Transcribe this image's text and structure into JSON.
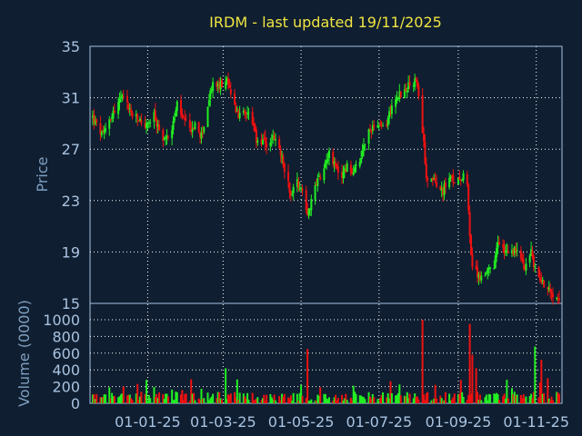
{
  "chart_data": [
    {
      "type": "candlestick",
      "title": "IRDM - last updated 19/11/2025",
      "ylabel": "Price",
      "ylim": [
        15,
        35
      ],
      "yticks": [
        "35",
        "31",
        "27",
        "23",
        "19"
      ],
      "xticks": [
        "01-01-25",
        "01-03-25",
        "01-05-25",
        "01-07-25",
        "01-09-25",
        "01-11-25"
      ],
      "grid": true,
      "colors": {
        "up": "#22ee22",
        "down": "#ee1111",
        "background": "#0f1e30",
        "grid": "#ffffff",
        "title": "#f0e442",
        "label": "#7f9fc0"
      },
      "x_start": "2024-11-19",
      "x_end": "2025-11-19",
      "close_path": [
        [
          "2024-11-19",
          29.5
        ],
        [
          "2024-11-22",
          28.8
        ],
        [
          "2024-11-27",
          28.0
        ],
        [
          "2024-12-02",
          29.4
        ],
        [
          "2024-12-06",
          30.0
        ],
        [
          "2024-12-11",
          31.0
        ],
        [
          "2024-12-16",
          30.5
        ],
        [
          "2024-12-20",
          29.6
        ],
        [
          "2024-12-26",
          29.2
        ],
        [
          "2024-12-31",
          28.8
        ],
        [
          "2025-01-06",
          29.6
        ],
        [
          "2025-01-10",
          28.4
        ],
        [
          "2025-01-15",
          27.7
        ],
        [
          "2025-01-21",
          29.0
        ],
        [
          "2025-01-24",
          30.5
        ],
        [
          "2025-01-29",
          29.2
        ],
        [
          "2025-02-03",
          28.5
        ],
        [
          "2025-02-07",
          28.8
        ],
        [
          "2025-02-12",
          28.0
        ],
        [
          "2025-02-18",
          30.8
        ],
        [
          "2025-02-21",
          32.2
        ],
        [
          "2025-02-26",
          31.8
        ],
        [
          "2025-03-03",
          32.5
        ],
        [
          "2025-03-06",
          31.6
        ],
        [
          "2025-03-11",
          30.2
        ],
        [
          "2025-03-14",
          29.5
        ],
        [
          "2025-03-19",
          30.0
        ],
        [
          "2025-03-24",
          29.0
        ],
        [
          "2025-03-27",
          27.6
        ],
        [
          "2025-04-01",
          27.5
        ],
        [
          "2025-04-04",
          27.4
        ],
        [
          "2025-04-09",
          27.8
        ],
        [
          "2025-04-14",
          27.0
        ],
        [
          "2025-04-18",
          25.5
        ],
        [
          "2025-04-23",
          23.5
        ],
        [
          "2025-04-28",
          24.5
        ],
        [
          "2025-05-02",
          23.8
        ],
        [
          "2025-05-06",
          22.0
        ],
        [
          "2025-05-09",
          23.0
        ],
        [
          "2025-05-14",
          24.5
        ],
        [
          "2025-05-19",
          25.8
        ],
        [
          "2025-05-23",
          26.8
        ],
        [
          "2025-05-28",
          25.5
        ],
        [
          "2025-06-02",
          25.0
        ],
        [
          "2025-06-06",
          25.6
        ],
        [
          "2025-06-11",
          25.2
        ],
        [
          "2025-06-16",
          25.8
        ],
        [
          "2025-06-19",
          27.2
        ],
        [
          "2025-06-24",
          28.5
        ],
        [
          "2025-06-27",
          29.0
        ],
        [
          "2025-07-02",
          28.6
        ],
        [
          "2025-07-07",
          29.0
        ],
        [
          "2025-07-11",
          30.5
        ],
        [
          "2025-07-16",
          31.2
        ],
        [
          "2025-07-21",
          31.5
        ],
        [
          "2025-07-25",
          32.0
        ],
        [
          "2025-07-30",
          32.3
        ],
        [
          "2025-08-04",
          28.5
        ],
        [
          "2025-08-07",
          25.0
        ],
        [
          "2025-08-12",
          24.6
        ],
        [
          "2025-08-15",
          24.0
        ],
        [
          "2025-08-20",
          23.8
        ],
        [
          "2025-08-25",
          24.8
        ],
        [
          "2025-08-28",
          24.5
        ],
        [
          "2025-09-02",
          24.8
        ],
        [
          "2025-09-05",
          25.0
        ],
        [
          "2025-09-08",
          24.6
        ],
        [
          "2025-09-10",
          20.0
        ],
        [
          "2025-09-12",
          17.8
        ],
        [
          "2025-09-16",
          17.2
        ],
        [
          "2025-09-19",
          17.0
        ],
        [
          "2025-09-24",
          17.4
        ],
        [
          "2025-09-29",
          17.8
        ],
        [
          "2025-10-02",
          19.8
        ],
        [
          "2025-10-07",
          19.0
        ],
        [
          "2025-10-10",
          18.7
        ],
        [
          "2025-10-15",
          19.2
        ],
        [
          "2025-10-20",
          18.5
        ],
        [
          "2025-10-23",
          18.0
        ],
        [
          "2025-10-28",
          19.0
        ],
        [
          "2025-10-31",
          17.6
        ],
        [
          "2025-11-05",
          16.8
        ],
        [
          "2025-11-10",
          16.2
        ],
        [
          "2025-11-14",
          15.8
        ],
        [
          "2025-11-19",
          15.6
        ]
      ]
    },
    {
      "type": "bar",
      "ylabel": "Volume (0000)",
      "ylim": [
        0,
        1000
      ],
      "yticks": [
        "0",
        "200",
        "400",
        "600",
        "800",
        "1000"
      ],
      "grid": true,
      "typical_volume": 70,
      "volume_spikes": [
        [
          "2024-12-31",
          280
        ],
        [
          "2025-03-03",
          420
        ],
        [
          "2025-05-06",
          650
        ],
        [
          "2025-08-04",
          1000
        ],
        [
          "2025-09-10",
          950
        ],
        [
          "2025-09-12",
          580
        ],
        [
          "2025-09-15",
          420
        ],
        [
          "2025-10-31",
          680
        ],
        [
          "2025-11-05",
          520
        ],
        [
          "2025-11-10",
          300
        ]
      ]
    }
  ]
}
